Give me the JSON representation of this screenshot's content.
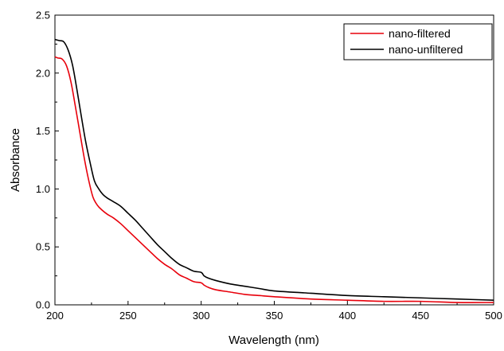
{
  "chart_data": {
    "type": "line",
    "title": "",
    "xlabel": "Wavelength (nm)",
    "ylabel": "Absorbance",
    "xlim": [
      200,
      500
    ],
    "ylim": [
      0.0,
      2.5
    ],
    "xticks": [
      200,
      250,
      300,
      350,
      400,
      450,
      500
    ],
    "xtick_labels": [
      "200",
      "250",
      "300",
      "350",
      "400",
      "450",
      "500"
    ],
    "yticks": [
      0.0,
      0.5,
      1.0,
      1.5,
      2.0,
      2.5
    ],
    "ytick_labels": [
      "0.0",
      "0.5",
      "1.0",
      "1.5",
      "2.0",
      "2.5"
    ],
    "grid": false,
    "legend_position": "top-right",
    "series": [
      {
        "name": "nano-filtered",
        "color": "#e8000b",
        "x": [
          200,
          202,
          205,
          208,
          211,
          214,
          217,
          220,
          223,
          226,
          229,
          232,
          236,
          240,
          245,
          250,
          255,
          260,
          265,
          270,
          275,
          280,
          285,
          290,
          295,
          300,
          302,
          305,
          310,
          320,
          330,
          340,
          350,
          375,
          400,
          425,
          450,
          475,
          500
        ],
        "y": [
          2.14,
          2.13,
          2.12,
          2.06,
          1.92,
          1.71,
          1.49,
          1.27,
          1.08,
          0.93,
          0.86,
          0.82,
          0.78,
          0.75,
          0.7,
          0.64,
          0.58,
          0.52,
          0.46,
          0.4,
          0.35,
          0.31,
          0.26,
          0.23,
          0.2,
          0.19,
          0.17,
          0.15,
          0.13,
          0.11,
          0.09,
          0.08,
          0.07,
          0.05,
          0.04,
          0.03,
          0.03,
          0.02,
          0.02
        ]
      },
      {
        "name": "nano-unfiltered",
        "color": "#000000",
        "x": [
          200,
          203,
          206,
          209,
          212,
          215,
          218,
          221,
          224,
          227,
          230,
          233,
          236,
          240,
          245,
          250,
          255,
          260,
          265,
          270,
          275,
          280,
          285,
          290,
          295,
          300,
          302,
          305,
          310,
          320,
          330,
          340,
          350,
          375,
          400,
          425,
          450,
          475,
          500
        ],
        "y": [
          2.29,
          2.28,
          2.27,
          2.2,
          2.07,
          1.86,
          1.63,
          1.41,
          1.23,
          1.07,
          1.0,
          0.95,
          0.92,
          0.89,
          0.85,
          0.79,
          0.73,
          0.66,
          0.59,
          0.52,
          0.46,
          0.4,
          0.35,
          0.32,
          0.29,
          0.28,
          0.25,
          0.23,
          0.21,
          0.18,
          0.16,
          0.14,
          0.12,
          0.1,
          0.08,
          0.07,
          0.06,
          0.05,
          0.04
        ]
      }
    ]
  }
}
